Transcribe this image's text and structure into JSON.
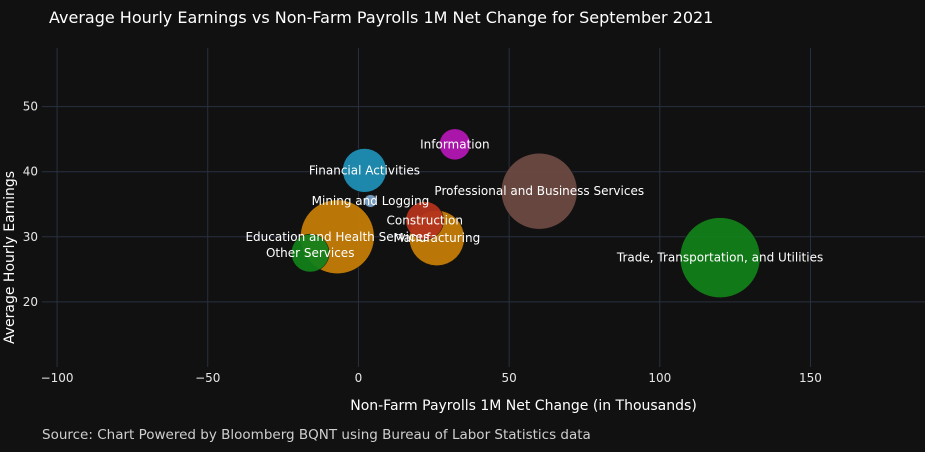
{
  "chart_data": {
    "type": "scatter",
    "subtype": "bubble",
    "title": "Average Hourly Earnings vs Non-Farm Payrolls 1M Net Change for September 2021",
    "source": "Source: Chart Powered by Bloomberg BQNT using Bureau of Labor Statistics data",
    "xlabel": "Non-Farm Payrolls 1M Net Change (in Thousands)",
    "ylabel": "Average Hourly Earnings",
    "xlim": [
      -105,
      188
    ],
    "ylim": [
      10,
      59
    ],
    "xticks": [
      -100,
      -50,
      0,
      50,
      100,
      150
    ],
    "xtick_labels": [
      "−100",
      "−50",
      "0",
      "50",
      "100",
      "150"
    ],
    "yticks": [
      20,
      30,
      40,
      50
    ],
    "ytick_labels": [
      "20",
      "30",
      "40",
      "50"
    ],
    "grid": true,
    "background": "#111111",
    "grid_color": "#283142",
    "points": [
      {
        "name": "Information",
        "x": 32,
        "y": 44.2,
        "size": 0.3,
        "color": "#b316b3"
      },
      {
        "name": "Financial Activities",
        "x": 2,
        "y": 40.2,
        "size": 0.6,
        "color": "#1f8fb4"
      },
      {
        "name": "Professional and Business Services",
        "x": 60,
        "y": 37.0,
        "size": 1.8,
        "color": "#6e4a43"
      },
      {
        "name": "Mining and Logging",
        "x": 4,
        "y": 35.5,
        "size": 0.05,
        "color": "#7aa2c8"
      },
      {
        "name": "Construction",
        "x": 22,
        "y": 32.5,
        "size": 0.45,
        "color": "#b3331c"
      },
      {
        "name": "Education and Health Services",
        "x": -7,
        "y": 30.0,
        "size": 1.7,
        "color": "#c47c06"
      },
      {
        "name": "Manufacturing",
        "x": 26,
        "y": 29.8,
        "size": 0.95,
        "color": "#c47c06"
      },
      {
        "name": "Other Services",
        "x": -16,
        "y": 27.5,
        "size": 0.45,
        "color": "#13801a"
      },
      {
        "name": "Trade, Transportation, and Utilities",
        "x": 120,
        "y": 26.8,
        "size": 2.0,
        "color": "#13801a"
      }
    ]
  }
}
